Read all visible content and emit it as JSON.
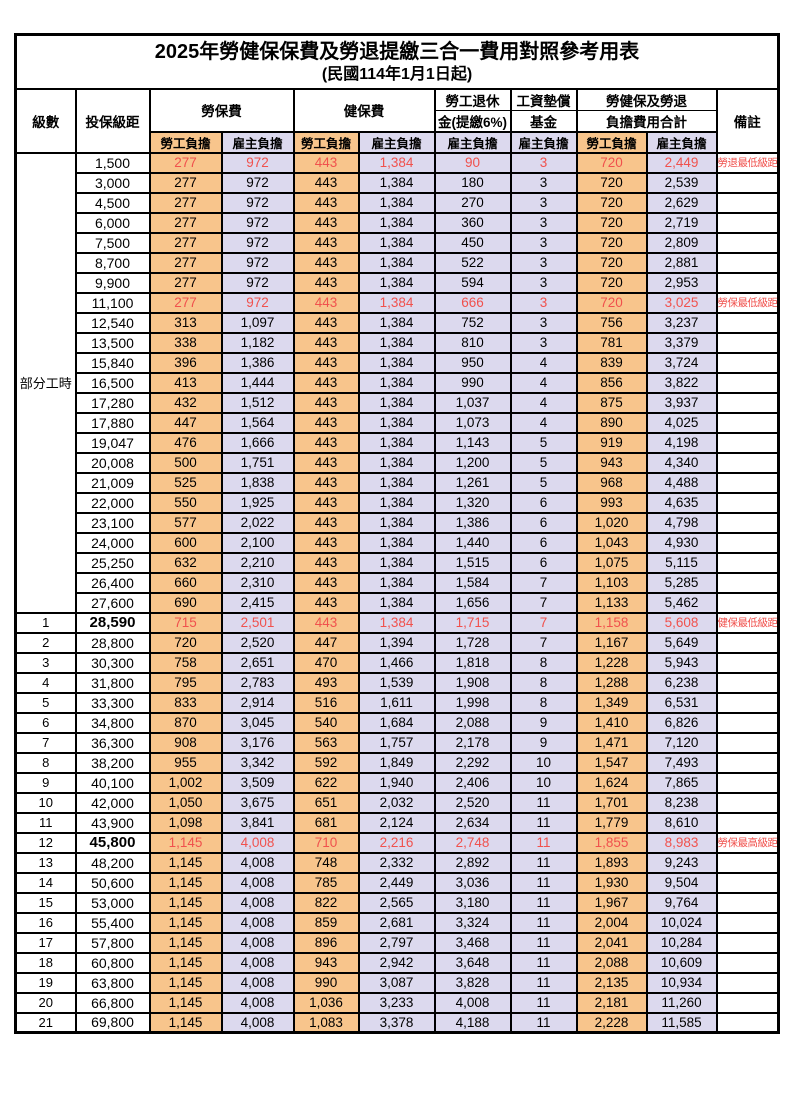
{
  "colors": {
    "employee_bg": "#f8c58c",
    "employer_bg": "#dcd9ee",
    "highlight_red": "#f0514d",
    "border": "#000000"
  },
  "title": {
    "line1": "2025年勞健保保費及勞退提繳三合一費用對照參考用表",
    "line2": "(民國114年1月1日起)"
  },
  "table": {
    "header": {
      "level": "級數",
      "bracket": "投保級距",
      "labor": "勞保費",
      "health": "健保費",
      "pension_l1": "勞工退休",
      "pension_l2": "金(提繳6%)",
      "wage_l1": "工資墊償",
      "wage_l2": "基金",
      "total_l1": "勞健保及勞退",
      "total_l2": "負擔費用合計",
      "remark": "備註",
      "employee": "勞工負擔",
      "employer": "雇主負擔"
    },
    "part_time_label": "部分工時",
    "part_time_row_count": 23,
    "rows": [
      {
        "level": "",
        "bracket": "1,500",
        "v": [
          "277",
          "972",
          "443",
          "1,384",
          "90",
          "3",
          "720",
          "2,449"
        ],
        "remark": "勞退最低級距",
        "hl": true
      },
      {
        "level": "",
        "bracket": "3,000",
        "v": [
          "277",
          "972",
          "443",
          "1,384",
          "180",
          "3",
          "720",
          "2,539"
        ],
        "remark": "",
        "hl": false
      },
      {
        "level": "",
        "bracket": "4,500",
        "v": [
          "277",
          "972",
          "443",
          "1,384",
          "270",
          "3",
          "720",
          "2,629"
        ],
        "remark": "",
        "hl": false
      },
      {
        "level": "",
        "bracket": "6,000",
        "v": [
          "277",
          "972",
          "443",
          "1,384",
          "360",
          "3",
          "720",
          "2,719"
        ],
        "remark": "",
        "hl": false
      },
      {
        "level": "",
        "bracket": "7,500",
        "v": [
          "277",
          "972",
          "443",
          "1,384",
          "450",
          "3",
          "720",
          "2,809"
        ],
        "remark": "",
        "hl": false
      },
      {
        "level": "",
        "bracket": "8,700",
        "v": [
          "277",
          "972",
          "443",
          "1,384",
          "522",
          "3",
          "720",
          "2,881"
        ],
        "remark": "",
        "hl": false
      },
      {
        "level": "",
        "bracket": "9,900",
        "v": [
          "277",
          "972",
          "443",
          "1,384",
          "594",
          "3",
          "720",
          "2,953"
        ],
        "remark": "",
        "hl": false
      },
      {
        "level": "",
        "bracket": "11,100",
        "v": [
          "277",
          "972",
          "443",
          "1,384",
          "666",
          "3",
          "720",
          "3,025"
        ],
        "remark": "勞保最低級距",
        "hl": true
      },
      {
        "level": "",
        "bracket": "12,540",
        "v": [
          "313",
          "1,097",
          "443",
          "1,384",
          "752",
          "3",
          "756",
          "3,237"
        ],
        "remark": "",
        "hl": false
      },
      {
        "level": "",
        "bracket": "13,500",
        "v": [
          "338",
          "1,182",
          "443",
          "1,384",
          "810",
          "3",
          "781",
          "3,379"
        ],
        "remark": "",
        "hl": false
      },
      {
        "level": "",
        "bracket": "15,840",
        "v": [
          "396",
          "1,386",
          "443",
          "1,384",
          "950",
          "4",
          "839",
          "3,724"
        ],
        "remark": "",
        "hl": false
      },
      {
        "level": "",
        "bracket": "16,500",
        "v": [
          "413",
          "1,444",
          "443",
          "1,384",
          "990",
          "4",
          "856",
          "3,822"
        ],
        "remark": "",
        "hl": false
      },
      {
        "level": "",
        "bracket": "17,280",
        "v": [
          "432",
          "1,512",
          "443",
          "1,384",
          "1,037",
          "4",
          "875",
          "3,937"
        ],
        "remark": "",
        "hl": false
      },
      {
        "level": "",
        "bracket": "17,880",
        "v": [
          "447",
          "1,564",
          "443",
          "1,384",
          "1,073",
          "4",
          "890",
          "4,025"
        ],
        "remark": "",
        "hl": false
      },
      {
        "level": "",
        "bracket": "19,047",
        "v": [
          "476",
          "1,666",
          "443",
          "1,384",
          "1,143",
          "5",
          "919",
          "4,198"
        ],
        "remark": "",
        "hl": false
      },
      {
        "level": "",
        "bracket": "20,008",
        "v": [
          "500",
          "1,751",
          "443",
          "1,384",
          "1,200",
          "5",
          "943",
          "4,340"
        ],
        "remark": "",
        "hl": false
      },
      {
        "level": "",
        "bracket": "21,009",
        "v": [
          "525",
          "1,838",
          "443",
          "1,384",
          "1,261",
          "5",
          "968",
          "4,488"
        ],
        "remark": "",
        "hl": false
      },
      {
        "level": "",
        "bracket": "22,000",
        "v": [
          "550",
          "1,925",
          "443",
          "1,384",
          "1,320",
          "6",
          "993",
          "4,635"
        ],
        "remark": "",
        "hl": false
      },
      {
        "level": "",
        "bracket": "23,100",
        "v": [
          "577",
          "2,022",
          "443",
          "1,384",
          "1,386",
          "6",
          "1,020",
          "4,798"
        ],
        "remark": "",
        "hl": false
      },
      {
        "level": "",
        "bracket": "24,000",
        "v": [
          "600",
          "2,100",
          "443",
          "1,384",
          "1,440",
          "6",
          "1,043",
          "4,930"
        ],
        "remark": "",
        "hl": false
      },
      {
        "level": "",
        "bracket": "25,250",
        "v": [
          "632",
          "2,210",
          "443",
          "1,384",
          "1,515",
          "6",
          "1,075",
          "5,115"
        ],
        "remark": "",
        "hl": false
      },
      {
        "level": "",
        "bracket": "26,400",
        "v": [
          "660",
          "2,310",
          "443",
          "1,384",
          "1,584",
          "7",
          "1,103",
          "5,285"
        ],
        "remark": "",
        "hl": false
      },
      {
        "level": "",
        "bracket": "27,600",
        "v": [
          "690",
          "2,415",
          "443",
          "1,384",
          "1,656",
          "7",
          "1,133",
          "5,462"
        ],
        "remark": "",
        "hl": false
      },
      {
        "level": "1",
        "bracket": "28,590",
        "bold": true,
        "v": [
          "715",
          "2,501",
          "443",
          "1,384",
          "1,715",
          "7",
          "1,158",
          "5,608"
        ],
        "remark": "健保最低級距",
        "hl": true
      },
      {
        "level": "2",
        "bracket": "28,800",
        "v": [
          "720",
          "2,520",
          "447",
          "1,394",
          "1,728",
          "7",
          "1,167",
          "5,649"
        ],
        "remark": "",
        "hl": false
      },
      {
        "level": "3",
        "bracket": "30,300",
        "v": [
          "758",
          "2,651",
          "470",
          "1,466",
          "1,818",
          "8",
          "1,228",
          "5,943"
        ],
        "remark": "",
        "hl": false
      },
      {
        "level": "4",
        "bracket": "31,800",
        "v": [
          "795",
          "2,783",
          "493",
          "1,539",
          "1,908",
          "8",
          "1,288",
          "6,238"
        ],
        "remark": "",
        "hl": false
      },
      {
        "level": "5",
        "bracket": "33,300",
        "v": [
          "833",
          "2,914",
          "516",
          "1,611",
          "1,998",
          "8",
          "1,349",
          "6,531"
        ],
        "remark": "",
        "hl": false
      },
      {
        "level": "6",
        "bracket": "34,800",
        "v": [
          "870",
          "3,045",
          "540",
          "1,684",
          "2,088",
          "9",
          "1,410",
          "6,826"
        ],
        "remark": "",
        "hl": false
      },
      {
        "level": "7",
        "bracket": "36,300",
        "v": [
          "908",
          "3,176",
          "563",
          "1,757",
          "2,178",
          "9",
          "1,471",
          "7,120"
        ],
        "remark": "",
        "hl": false
      },
      {
        "level": "8",
        "bracket": "38,200",
        "v": [
          "955",
          "3,342",
          "592",
          "1,849",
          "2,292",
          "10",
          "1,547",
          "7,493"
        ],
        "remark": "",
        "hl": false
      },
      {
        "level": "9",
        "bracket": "40,100",
        "v": [
          "1,002",
          "3,509",
          "622",
          "1,940",
          "2,406",
          "10",
          "1,624",
          "7,865"
        ],
        "remark": "",
        "hl": false
      },
      {
        "level": "10",
        "bracket": "42,000",
        "v": [
          "1,050",
          "3,675",
          "651",
          "2,032",
          "2,520",
          "11",
          "1,701",
          "8,238"
        ],
        "remark": "",
        "hl": false
      },
      {
        "level": "11",
        "bracket": "43,900",
        "v": [
          "1,098",
          "3,841",
          "681",
          "2,124",
          "2,634",
          "11",
          "1,779",
          "8,610"
        ],
        "remark": "",
        "hl": false
      },
      {
        "level": "12",
        "bracket": "45,800",
        "bold": true,
        "v": [
          "1,145",
          "4,008",
          "710",
          "2,216",
          "2,748",
          "11",
          "1,855",
          "8,983"
        ],
        "remark": "勞保最高級距",
        "hl": true
      },
      {
        "level": "13",
        "bracket": "48,200",
        "v": [
          "1,145",
          "4,008",
          "748",
          "2,332",
          "2,892",
          "11",
          "1,893",
          "9,243"
        ],
        "remark": "",
        "hl": false
      },
      {
        "level": "14",
        "bracket": "50,600",
        "v": [
          "1,145",
          "4,008",
          "785",
          "2,449",
          "3,036",
          "11",
          "1,930",
          "9,504"
        ],
        "remark": "",
        "hl": false
      },
      {
        "level": "15",
        "bracket": "53,000",
        "v": [
          "1,145",
          "4,008",
          "822",
          "2,565",
          "3,180",
          "11",
          "1,967",
          "9,764"
        ],
        "remark": "",
        "hl": false
      },
      {
        "level": "16",
        "bracket": "55,400",
        "v": [
          "1,145",
          "4,008",
          "859",
          "2,681",
          "3,324",
          "11",
          "2,004",
          "10,024"
        ],
        "remark": "",
        "hl": false
      },
      {
        "level": "17",
        "bracket": "57,800",
        "v": [
          "1,145",
          "4,008",
          "896",
          "2,797",
          "3,468",
          "11",
          "2,041",
          "10,284"
        ],
        "remark": "",
        "hl": false
      },
      {
        "level": "18",
        "bracket": "60,800",
        "v": [
          "1,145",
          "4,008",
          "943",
          "2,942",
          "3,648",
          "11",
          "2,088",
          "10,609"
        ],
        "remark": "",
        "hl": false
      },
      {
        "level": "19",
        "bracket": "63,800",
        "v": [
          "1,145",
          "4,008",
          "990",
          "3,087",
          "3,828",
          "11",
          "2,135",
          "10,934"
        ],
        "remark": "",
        "hl": false
      },
      {
        "level": "20",
        "bracket": "66,800",
        "v": [
          "1,145",
          "4,008",
          "1,036",
          "3,233",
          "4,008",
          "11",
          "2,181",
          "11,260"
        ],
        "remark": "",
        "hl": false
      },
      {
        "level": "21",
        "bracket": "69,800",
        "v": [
          "1,145",
          "4,008",
          "1,083",
          "3,378",
          "4,188",
          "11",
          "2,228",
          "11,585"
        ],
        "remark": "",
        "hl": false
      }
    ]
  }
}
